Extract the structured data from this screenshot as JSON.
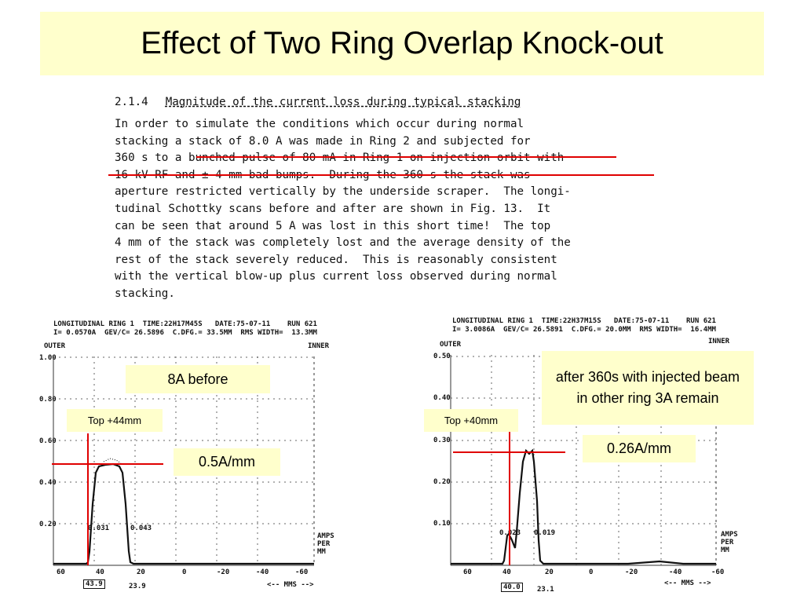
{
  "title": "Effect of Two Ring Overlap Knock-out",
  "document": {
    "section_number": "2.1.4",
    "section_title": "Magnitude of the current loss during typical stacking",
    "lines": [
      "In order to simulate the conditions which occur during normal",
      "stacking a stack of 8.0 A was made in Ring 2 and subjected for",
      "360 s to a bunched pulse of 80 mA in Ring 1 on injection orbit with",
      "16 kV RF and ± 4 mm bad bumps.  During the 360 s the stack was",
      "aperture restricted vertically by the underside scraper.  The longi-",
      "tudinal Schottky scans before and after are shown in Fig. 13.  It",
      "can be seen that around 5 A was lost in this short time!  The top",
      "4 mm of the stack was completely lost and the average density of the",
      "rest of the stack severely reduced.  This is reasonably consistent",
      "with the vertical blow-up plus current loss observed during normal",
      "stacking."
    ]
  },
  "left_scan": {
    "header_line1": "LONGITUDINAL RING 1  TIME:22H17M45S   DATE:75-07-11    RUN 621",
    "header_line2": "I= 0.0570A  GEV/C= 26.5896  C.DFG.= 33.5MM  RMS WIDTH=  13.3MM",
    "outer_label": "OUTER",
    "inner_label": "INNER",
    "y_ticks": [
      "1.00",
      "0.80",
      "0.60",
      "0.40",
      "0.20"
    ],
    "x_ticks": [
      "60",
      "40",
      "20",
      "0",
      "-20",
      "-40",
      "-60"
    ],
    "units_label": [
      "AMPS",
      "PER",
      "MM"
    ],
    "mm_axis_label": "<-- MMS -->",
    "marker_left": "0.031",
    "marker_right": "0.043",
    "box_value": "43.9",
    "box_value_2": "23.9",
    "annotation": "8A before",
    "top_label": "Top +44mm",
    "density_label": "0.5A/mm"
  },
  "right_scan": {
    "header_line1": "LONGITUDINAL RING 1  TIME:22H37M15S   DATE:75-07-11    RUN 621",
    "header_line2": "I= 3.0086A  GEV/C= 26.5891  C.DFG.= 20.0MM  RMS WIDTH=  16.4MM",
    "outer_label": "OUTER",
    "inner_label": "INNER",
    "y_ticks": [
      "0.50",
      "0.40",
      "0.30",
      "0.20",
      "0.10"
    ],
    "x_ticks": [
      "60",
      "40",
      "20",
      "0",
      "-20",
      "-40",
      "-60"
    ],
    "units_label": [
      "AMPS",
      "PER",
      "MM"
    ],
    "mm_axis_label": "<-- MMS -->",
    "marker_left": "0.023",
    "marker_right": "0.019",
    "box_value": "40.0",
    "box_value_2": "23.1",
    "annotation": "after 360s with injected beam in other ring 3A remain",
    "top_label": "Top +40mm",
    "density_label": "0.26A/mm"
  },
  "colors": {
    "title_bg": "#ffffcc",
    "annotation_bg": "#ffffcc",
    "marker_red": "#e00000"
  }
}
